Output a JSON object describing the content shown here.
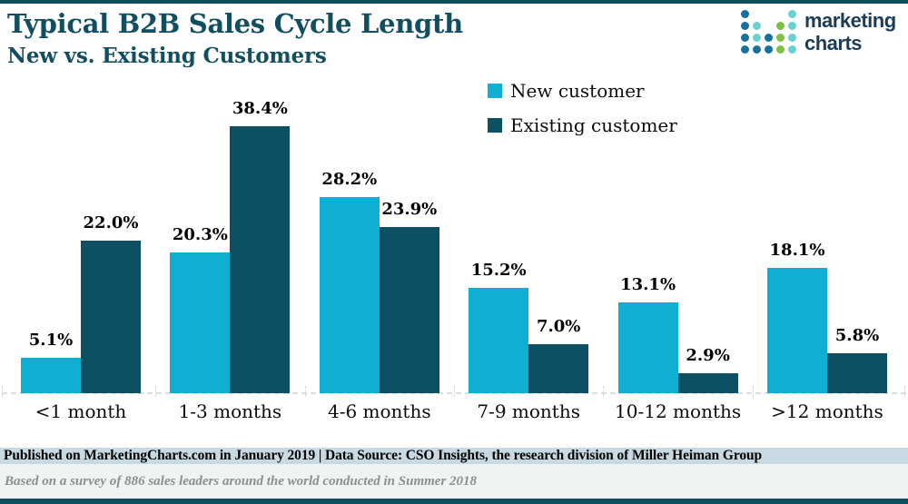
{
  "header": {
    "title": "Typical B2B Sales Cycle Length",
    "subtitle": "New vs. Existing Customers"
  },
  "logo": {
    "text_line1": "marketing",
    "text_line2": "charts",
    "dot_colors": {
      "d": "#17719b",
      "c": "#6ad0d0",
      "g": "#7cc142"
    },
    "dot_grid": [
      [
        "d",
        "",
        "",
        "",
        "c"
      ],
      [
        "d",
        "c",
        "",
        "g",
        "c"
      ],
      [
        "d",
        "c",
        "d",
        "g",
        "c"
      ],
      [
        "d",
        "d",
        "d",
        "g",
        "c"
      ]
    ]
  },
  "chart_data": {
    "type": "bar",
    "title": "Typical B2B Sales Cycle Length",
    "subtitle": "New vs. Existing Customers",
    "categories": [
      "<1 month",
      "1-3 months",
      "4-6 months",
      "7-9 months",
      "10-12 months",
      ">12 months"
    ],
    "series": [
      {
        "name": "New customer",
        "color": "#0fafd4",
        "values": [
          5.1,
          20.3,
          28.2,
          15.2,
          13.1,
          18.1
        ]
      },
      {
        "name": "Existing customer",
        "color": "#0d5064",
        "values": [
          22.0,
          38.4,
          23.9,
          7.0,
          2.9,
          5.8
        ]
      }
    ],
    "value_suffix": "%",
    "ylim": [
      0,
      40
    ],
    "legend_position": "top-center",
    "grid": false,
    "baseline_style": "dashed"
  },
  "footer": {
    "publication": "Published on MarketingCharts.com in January 2019 | Data Source: CSO Insights, the research division of Miller Heiman Group",
    "note": "Based on a survey of 886 sales leaders around the world conducted in Summer 2018"
  },
  "colors": {
    "accent_dark_teal": "#0e4f5f",
    "title_text": "#114e5f",
    "bar_new": "#0fafd4",
    "bar_existing": "#0d5064",
    "footer_band_bg": "#c7d9e2",
    "note_bg": "#f1f2f2",
    "note_text": "#8a8f8f",
    "logo_text": "#1d3c55"
  }
}
